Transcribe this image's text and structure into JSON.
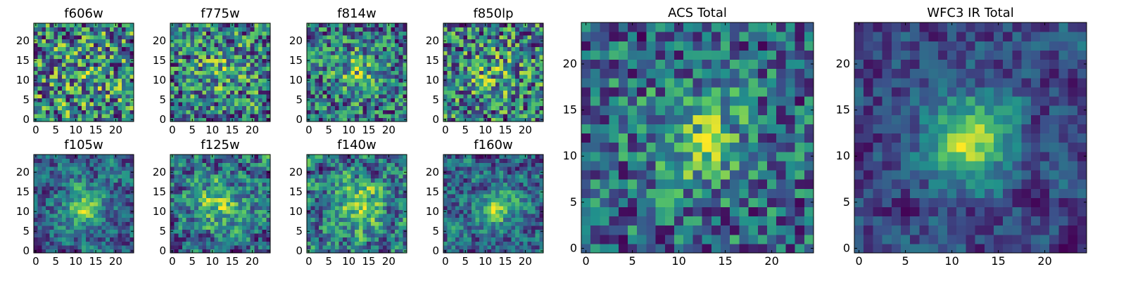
{
  "figure": {
    "colormap": "viridis",
    "palette": [
      "#440154",
      "#3b528b",
      "#21918c",
      "#5ec962",
      "#fde725"
    ]
  },
  "chart_data": [
    {
      "type": "heatmap",
      "title": "f606w",
      "x_ticks": [
        "0",
        "5",
        "10",
        "15",
        "20"
      ],
      "y_ticks": [
        "0",
        "5",
        "10",
        "15",
        "20"
      ],
      "xlim": [
        0,
        25
      ],
      "ylim": [
        0,
        25
      ],
      "grid_size": 25,
      "pattern": {
        "seed": 11,
        "center": [
          12,
          12
        ],
        "sigma": 6.0,
        "amp": 0.06,
        "base": 0.46,
        "noise": 0.3,
        "smooth": 0
      }
    },
    {
      "type": "heatmap",
      "title": "f775w",
      "x_ticks": [
        "0",
        "5",
        "10",
        "15",
        "20"
      ],
      "y_ticks": [
        "0",
        "5",
        "10",
        "15",
        "20"
      ],
      "xlim": [
        0,
        25
      ],
      "ylim": [
        0,
        25
      ],
      "grid_size": 25,
      "pattern": {
        "seed": 22,
        "center": [
          12,
          12
        ],
        "sigma": 5.0,
        "amp": 0.12,
        "base": 0.44,
        "noise": 0.3,
        "smooth": 0
      }
    },
    {
      "type": "heatmap",
      "title": "f814w",
      "x_ticks": [
        "0",
        "5",
        "10",
        "15",
        "20"
      ],
      "y_ticks": [
        "0",
        "5",
        "10",
        "15",
        "20"
      ],
      "xlim": [
        0,
        25
      ],
      "ylim": [
        0,
        25
      ],
      "grid_size": 25,
      "pattern": {
        "seed": 33,
        "center": [
          12,
          12
        ],
        "sigma": 4.5,
        "amp": 0.2,
        "base": 0.44,
        "noise": 0.28,
        "smooth": 0
      }
    },
    {
      "type": "heatmap",
      "title": "f850lp",
      "x_ticks": [
        "0",
        "5",
        "10",
        "15",
        "20"
      ],
      "y_ticks": [
        "0",
        "5",
        "10",
        "15",
        "20"
      ],
      "xlim": [
        0,
        25
      ],
      "ylim": [
        0,
        25
      ],
      "grid_size": 25,
      "pattern": {
        "seed": 44,
        "center": [
          12,
          12
        ],
        "sigma": 5.0,
        "amp": 0.1,
        "base": 0.4,
        "noise": 0.26,
        "smooth": 0
      }
    },
    {
      "type": "heatmap",
      "title": "ACS Total",
      "x_ticks": [
        "0",
        "5",
        "10",
        "15",
        "20"
      ],
      "y_ticks": [
        "0",
        "5",
        "10",
        "15",
        "20"
      ],
      "xlim": [
        0,
        25
      ],
      "ylim": [
        0,
        25
      ],
      "grid_size": 25,
      "pattern": {
        "seed": 55,
        "center": [
          12,
          12
        ],
        "sigma": 4.0,
        "amp": 0.25,
        "base": 0.46,
        "noise": 0.22,
        "smooth": 0
      }
    },
    {
      "type": "heatmap",
      "title": "f105w",
      "x_ticks": [
        "0",
        "5",
        "10",
        "15",
        "20"
      ],
      "y_ticks": [
        "0",
        "5",
        "10",
        "15",
        "20"
      ],
      "xlim": [
        0,
        25
      ],
      "ylim": [
        0,
        25
      ],
      "grid_size": 25,
      "pattern": {
        "seed": 66,
        "center": [
          12,
          11
        ],
        "sigma": 3.5,
        "amp": 0.35,
        "base": 0.46,
        "noise": 0.3,
        "smooth": 1
      }
    },
    {
      "type": "heatmap",
      "title": "f125w",
      "x_ticks": [
        "0",
        "5",
        "10",
        "15",
        "20"
      ],
      "y_ticks": [
        "0",
        "5",
        "10",
        "15",
        "20"
      ],
      "xlim": [
        0,
        25
      ],
      "ylim": [
        0,
        25
      ],
      "grid_size": 25,
      "pattern": {
        "seed": 77,
        "center": [
          12,
          12
        ],
        "sigma": 4.0,
        "amp": 0.25,
        "base": 0.46,
        "noise": 0.32,
        "smooth": 1
      }
    },
    {
      "type": "heatmap",
      "title": "f140w",
      "x_ticks": [
        "0",
        "5",
        "10",
        "15",
        "20"
      ],
      "y_ticks": [
        "0",
        "5",
        "10",
        "15",
        "20"
      ],
      "xlim": [
        0,
        25
      ],
      "ylim": [
        0,
        25
      ],
      "grid_size": 25,
      "pattern": {
        "seed": 88,
        "center": [
          13,
          12
        ],
        "sigma": 4.0,
        "amp": 0.25,
        "base": 0.44,
        "noise": 0.3,
        "smooth": 1
      }
    },
    {
      "type": "heatmap",
      "title": "f160w",
      "x_ticks": [
        "0",
        "5",
        "10",
        "15",
        "20"
      ],
      "y_ticks": [
        "0",
        "5",
        "10",
        "15",
        "20"
      ],
      "xlim": [
        0,
        25
      ],
      "ylim": [
        0,
        25
      ],
      "grid_size": 25,
      "pattern": {
        "seed": 99,
        "center": [
          13,
          11
        ],
        "sigma": 3.5,
        "amp": 0.3,
        "base": 0.42,
        "noise": 0.3,
        "smooth": 1
      }
    },
    {
      "type": "heatmap",
      "title": "WFC3 IR Total",
      "x_ticks": [
        "0",
        "5",
        "10",
        "15",
        "20"
      ],
      "y_ticks": [
        "0",
        "5",
        "10",
        "15",
        "20"
      ],
      "xlim": [
        0,
        25
      ],
      "ylim": [
        0,
        25
      ],
      "grid_size": 25,
      "pattern": {
        "seed": 123,
        "center": [
          12,
          12
        ],
        "sigma": 3.2,
        "amp": 0.4,
        "base": 0.4,
        "noise": 0.18,
        "smooth": 1
      }
    }
  ]
}
